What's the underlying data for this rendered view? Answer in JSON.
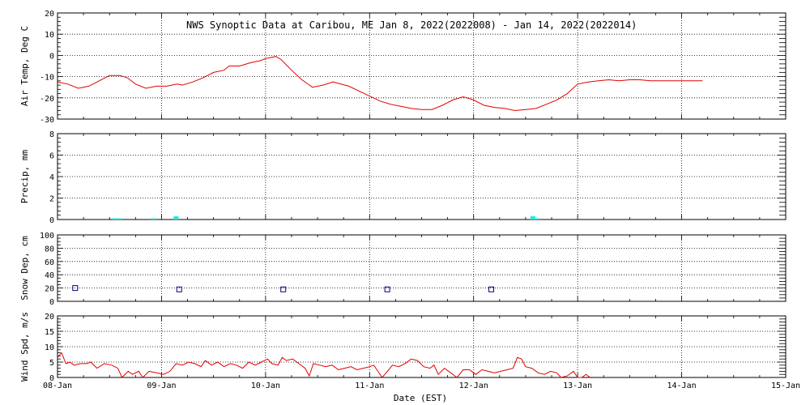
{
  "chart_data": {
    "title": "NWS Synoptic Data at Caribou, ME   Jan  8, 2022(2022008) - Jan 14, 2022(2022014)",
    "xlabel": "Date (EST)",
    "x_range_days": [
      0,
      7
    ],
    "x_tick_labels": [
      "08-Jan",
      "09-Jan",
      "10-Jan",
      "11-Jan",
      "12-Jan",
      "13-Jan",
      "14-Jan",
      "15-Jan"
    ],
    "colors": {
      "temp": "#e00000",
      "precip": "#22e6e6",
      "snow": "#000088",
      "wind": "#e00000",
      "grid": "#000000"
    },
    "panels": [
      {
        "id": "temp",
        "type": "line",
        "ylabel": "Air Temp, Deg C",
        "ylim": [
          -30,
          20
        ],
        "yticks": [
          20,
          10,
          0,
          -10,
          -20,
          -30
        ],
        "minor_step": 2,
        "series": [
          {
            "x": 0.0,
            "y": -12.5
          },
          {
            "x": 0.1,
            "y": -13.5
          },
          {
            "x": 0.2,
            "y": -15.5
          },
          {
            "x": 0.3,
            "y": -14.5
          },
          {
            "x": 0.4,
            "y": -12
          },
          {
            "x": 0.5,
            "y": -9.5
          },
          {
            "x": 0.6,
            "y": -9.5
          },
          {
            "x": 0.67,
            "y": -10.5
          },
          {
            "x": 0.75,
            "y": -13.5
          },
          {
            "x": 0.85,
            "y": -15.5
          },
          {
            "x": 0.95,
            "y": -14.5
          },
          {
            "x": 1.05,
            "y": -14.5
          },
          {
            "x": 1.15,
            "y": -13.5
          },
          {
            "x": 1.2,
            "y": -14
          },
          {
            "x": 1.3,
            "y": -12.5
          },
          {
            "x": 1.4,
            "y": -10.5
          },
          {
            "x": 1.5,
            "y": -8
          },
          {
            "x": 1.6,
            "y": -7
          },
          {
            "x": 1.65,
            "y": -5
          },
          {
            "x": 1.75,
            "y": -5
          },
          {
            "x": 1.85,
            "y": -3.5
          },
          {
            "x": 1.95,
            "y": -2.5
          },
          {
            "x": 2.0,
            "y": -1.5
          },
          {
            "x": 2.05,
            "y": -1
          },
          {
            "x": 2.1,
            "y": -0.5
          },
          {
            "x": 2.15,
            "y": -2
          },
          {
            "x": 2.25,
            "y": -7
          },
          {
            "x": 2.35,
            "y": -11.5
          },
          {
            "x": 2.45,
            "y": -15
          },
          {
            "x": 2.55,
            "y": -14
          },
          {
            "x": 2.65,
            "y": -12.5
          },
          {
            "x": 2.8,
            "y": -14.5
          },
          {
            "x": 2.95,
            "y": -18
          },
          {
            "x": 3.1,
            "y": -21.5
          },
          {
            "x": 3.2,
            "y": -23
          },
          {
            "x": 3.3,
            "y": -24
          },
          {
            "x": 3.4,
            "y": -25
          },
          {
            "x": 3.5,
            "y": -25.5
          },
          {
            "x": 3.6,
            "y": -25.5
          },
          {
            "x": 3.7,
            "y": -23.5
          },
          {
            "x": 3.8,
            "y": -21
          },
          {
            "x": 3.9,
            "y": -19.5
          },
          {
            "x": 4.0,
            "y": -21
          },
          {
            "x": 4.1,
            "y": -23.5
          },
          {
            "x": 4.2,
            "y": -24.5
          },
          {
            "x": 4.3,
            "y": -25
          },
          {
            "x": 4.4,
            "y": -26
          },
          {
            "x": 4.5,
            "y": -25.5
          },
          {
            "x": 4.6,
            "y": -25
          },
          {
            "x": 4.7,
            "y": -23
          },
          {
            "x": 4.8,
            "y": -21
          },
          {
            "x": 4.9,
            "y": -18
          },
          {
            "x": 5.0,
            "y": -13.5
          },
          {
            "x": 5.1,
            "y": -12.5
          },
          {
            "x": 5.2,
            "y": -12
          },
          {
            "x": 5.3,
            "y": -11.5
          },
          {
            "x": 5.4,
            "y": -12
          },
          {
            "x": 5.5,
            "y": -11.5
          },
          {
            "x": 5.6,
            "y": -11.5
          },
          {
            "x": 5.7,
            "y": -12
          },
          {
            "x": 6.0,
            "y": -12
          },
          {
            "x": 6.2,
            "y": -12
          }
        ]
      },
      {
        "id": "precip",
        "type": "bar",
        "ylabel": "Precip, mm",
        "ylim": [
          0,
          8
        ],
        "yticks": [
          8,
          6,
          4,
          2,
          0
        ],
        "minor_step": 0.4,
        "bars": [
          {
            "x": 0.55,
            "value": 0.1
          },
          {
            "x": 0.6,
            "value": 0.1
          },
          {
            "x": 0.92,
            "value": 0.1
          },
          {
            "x": 1.14,
            "value": 0.3
          },
          {
            "x": 4.57,
            "value": 0.3
          },
          {
            "x": 4.61,
            "value": 0.1
          }
        ]
      },
      {
        "id": "snow",
        "type": "scatter",
        "ylabel": "Snow Dep, cm",
        "ylim": [
          0,
          100
        ],
        "yticks": [
          100,
          80,
          60,
          40,
          20,
          0
        ],
        "minor_step": 5,
        "points": [
          {
            "x": 0.17,
            "y": 20
          },
          {
            "x": 1.17,
            "y": 18
          },
          {
            "x": 2.17,
            "y": 18
          },
          {
            "x": 3.17,
            "y": 18
          },
          {
            "x": 4.17,
            "y": 18
          }
        ]
      },
      {
        "id": "wind",
        "type": "line",
        "ylabel": "Wind Spd, m/s",
        "ylim": [
          0,
          20
        ],
        "yticks": [
          20,
          15,
          10,
          5,
          0
        ],
        "minor_step": 1,
        "series": [
          {
            "x": 0.0,
            "y": 6.5
          },
          {
            "x": 0.04,
            "y": 8
          },
          {
            "x": 0.08,
            "y": 4.5
          },
          {
            "x": 0.12,
            "y": 5
          },
          {
            "x": 0.16,
            "y": 4
          },
          {
            "x": 0.22,
            "y": 4.5
          },
          {
            "x": 0.28,
            "y": 4.5
          },
          {
            "x": 0.32,
            "y": 5
          },
          {
            "x": 0.38,
            "y": 3
          },
          {
            "x": 0.45,
            "y": 4.5
          },
          {
            "x": 0.52,
            "y": 4
          },
          {
            "x": 0.58,
            "y": 3
          },
          {
            "x": 0.62,
            "y": 0
          },
          {
            "x": 0.68,
            "y": 2
          },
          {
            "x": 0.72,
            "y": 1
          },
          {
            "x": 0.78,
            "y": 2
          },
          {
            "x": 0.82,
            "y": 0
          },
          {
            "x": 0.88,
            "y": 2
          },
          {
            "x": 0.95,
            "y": 1.5
          },
          {
            "x": 1.02,
            "y": 1
          },
          {
            "x": 1.08,
            "y": 2
          },
          {
            "x": 1.14,
            "y": 4.5
          },
          {
            "x": 1.2,
            "y": 4
          },
          {
            "x": 1.26,
            "y": 5
          },
          {
            "x": 1.32,
            "y": 4.5
          },
          {
            "x": 1.38,
            "y": 3.5
          },
          {
            "x": 1.42,
            "y": 5.5
          },
          {
            "x": 1.48,
            "y": 4
          },
          {
            "x": 1.54,
            "y": 5
          },
          {
            "x": 1.6,
            "y": 3.5
          },
          {
            "x": 1.66,
            "y": 4.5
          },
          {
            "x": 1.72,
            "y": 4
          },
          {
            "x": 1.78,
            "y": 3
          },
          {
            "x": 1.84,
            "y": 5
          },
          {
            "x": 1.9,
            "y": 4
          },
          {
            "x": 1.96,
            "y": 5
          },
          {
            "x": 2.02,
            "y": 6
          },
          {
            "x": 2.06,
            "y": 4.5
          },
          {
            "x": 2.12,
            "y": 4
          },
          {
            "x": 2.16,
            "y": 6.5
          },
          {
            "x": 2.2,
            "y": 5.5
          },
          {
            "x": 2.26,
            "y": 6
          },
          {
            "x": 2.32,
            "y": 4.5
          },
          {
            "x": 2.38,
            "y": 3
          },
          {
            "x": 2.42,
            "y": 0.5
          },
          {
            "x": 2.46,
            "y": 4.5
          },
          {
            "x": 2.52,
            "y": 4
          },
          {
            "x": 2.58,
            "y": 3.5
          },
          {
            "x": 2.64,
            "y": 4
          },
          {
            "x": 2.7,
            "y": 2.5
          },
          {
            "x": 2.76,
            "y": 3
          },
          {
            "x": 2.82,
            "y": 3.5
          },
          {
            "x": 2.88,
            "y": 2.5
          },
          {
            "x": 2.94,
            "y": 3
          },
          {
            "x": 3.0,
            "y": 3.5
          },
          {
            "x": 3.04,
            "y": 4
          },
          {
            "x": 3.08,
            "y": 2
          },
          {
            "x": 3.12,
            "y": 0
          },
          {
            "x": 3.16,
            "y": 1.5
          },
          {
            "x": 3.22,
            "y": 4
          },
          {
            "x": 3.28,
            "y": 3.5
          },
          {
            "x": 3.34,
            "y": 4.5
          },
          {
            "x": 3.4,
            "y": 6
          },
          {
            "x": 3.46,
            "y": 5.5
          },
          {
            "x": 3.52,
            "y": 3.5
          },
          {
            "x": 3.58,
            "y": 3
          },
          {
            "x": 3.62,
            "y": 4
          },
          {
            "x": 3.66,
            "y": 1
          },
          {
            "x": 3.72,
            "y": 3
          },
          {
            "x": 3.78,
            "y": 1.5
          },
          {
            "x": 3.84,
            "y": 0
          },
          {
            "x": 3.9,
            "y": 2.5
          },
          {
            "x": 3.96,
            "y": 2.5
          },
          {
            "x": 4.02,
            "y": 1
          },
          {
            "x": 4.08,
            "y": 2.5
          },
          {
            "x": 4.14,
            "y": 2
          },
          {
            "x": 4.2,
            "y": 1.5
          },
          {
            "x": 4.26,
            "y": 2
          },
          {
            "x": 4.32,
            "y": 2.5
          },
          {
            "x": 4.38,
            "y": 3
          },
          {
            "x": 4.42,
            "y": 6.5
          },
          {
            "x": 4.46,
            "y": 6
          },
          {
            "x": 4.5,
            "y": 3.5
          },
          {
            "x": 4.56,
            "y": 3
          },
          {
            "x": 4.62,
            "y": 1.5
          },
          {
            "x": 4.68,
            "y": 1
          },
          {
            "x": 4.74,
            "y": 2
          },
          {
            "x": 4.8,
            "y": 1.5
          },
          {
            "x": 4.84,
            "y": 0
          },
          {
            "x": 4.9,
            "y": 0.5
          },
          {
            "x": 4.96,
            "y": 2
          },
          {
            "x": 5.0,
            "y": 0
          },
          {
            "x": 5.04,
            "y": 0
          },
          {
            "x": 5.08,
            "y": 1
          },
          {
            "x": 5.12,
            "y": 0
          }
        ]
      }
    ]
  }
}
